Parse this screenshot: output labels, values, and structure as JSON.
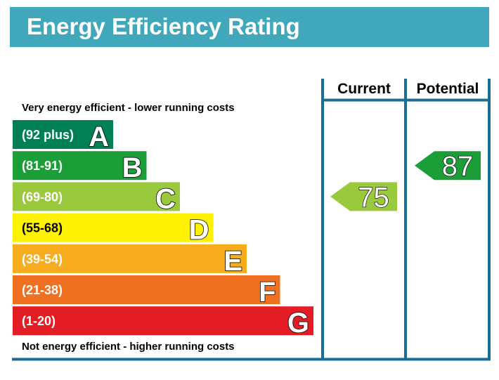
{
  "header": {
    "title": "Energy Efficiency Rating"
  },
  "colors": {
    "header_bg": "#41a8bb",
    "frame": "#1a6e91",
    "bands": [
      "#008054",
      "#1b9d37",
      "#9bc93e",
      "#fff200",
      "#f6ac1c",
      "#ef7020",
      "#e31d23"
    ]
  },
  "chart_data": {
    "type": "bar",
    "title": "Energy Efficiency Rating",
    "top_caption": "Very energy efficient - lower running costs",
    "bottom_caption": "Not energy efficient - higher running costs",
    "columns": [
      "Current",
      "Potential"
    ],
    "bands": [
      {
        "letter": "A",
        "range": "(92 plus)",
        "min": 92,
        "max": 100
      },
      {
        "letter": "B",
        "range": "(81-91)",
        "min": 81,
        "max": 91
      },
      {
        "letter": "C",
        "range": "(69-80)",
        "min": 69,
        "max": 80
      },
      {
        "letter": "D",
        "range": "(55-68)",
        "min": 55,
        "max": 68
      },
      {
        "letter": "E",
        "range": "(39-54)",
        "min": 39,
        "max": 54
      },
      {
        "letter": "F",
        "range": "(21-38)",
        "min": 21,
        "max": 38
      },
      {
        "letter": "G",
        "range": "(1-20)",
        "min": 1,
        "max": 20
      }
    ],
    "ratings": {
      "current": {
        "value": 75,
        "band": "C"
      },
      "potential": {
        "value": 87,
        "band": "B"
      }
    }
  }
}
